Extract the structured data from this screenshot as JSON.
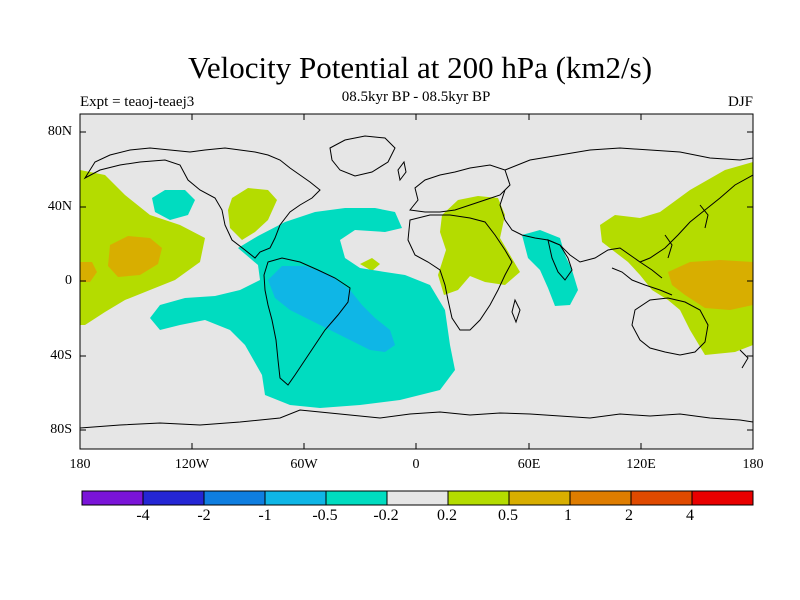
{
  "header": {
    "title": "Velocity Potential at 200 hPa (km2/s)",
    "subtitle": "08.5kyr BP - 08.5kyr BP",
    "experiment": "Expt = teaoj-teaej3",
    "season": "DJF"
  },
  "map": {
    "ocean_color": "#e6e6e6",
    "coastline_color": "#000000",
    "lat_axis_labels": [
      "80N",
      "40N",
      "0",
      "40S",
      "80S"
    ],
    "lon_axis_labels": [
      "180",
      "120W",
      "60W",
      "0",
      "60E",
      "120E",
      "180"
    ]
  },
  "colorbar": {
    "colors": [
      "#7a14d8",
      "#2426d4",
      "#0f7ee0",
      "#0fb6e6",
      "#00dcc0",
      "#e6e6e6",
      "#b4dc00",
      "#d8ae00",
      "#df7d00",
      "#e04a00",
      "#e90000"
    ],
    "labels": [
      "-4",
      "-2",
      "-1",
      "-0.5",
      "-0.2",
      "0.2",
      "0.5",
      "1",
      "2",
      "4"
    ]
  }
}
